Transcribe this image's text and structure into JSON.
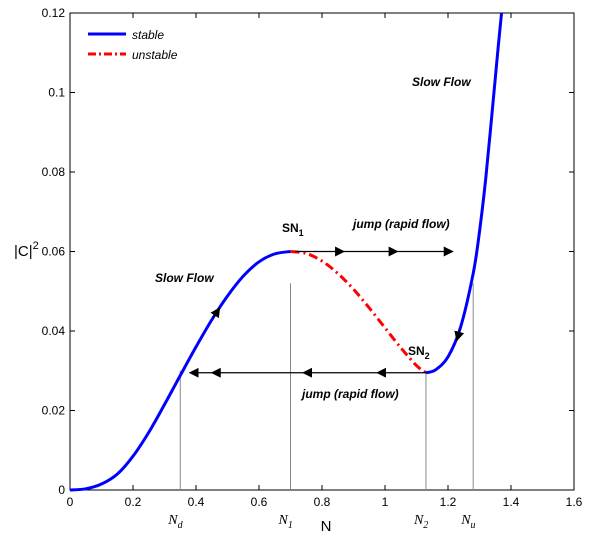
{
  "chart_data": {
    "type": "line",
    "title": "",
    "xlabel": "N",
    "ylabel": "|C|",
    "ylabel_exponent": "2",
    "xlim": [
      0,
      1.6
    ],
    "ylim": [
      0,
      0.12
    ],
    "xticks": [
      0,
      0.2,
      0.4,
      0.6,
      0.8,
      1,
      1.2,
      1.4,
      1.6
    ],
    "yticks": [
      0,
      0.02,
      0.04,
      0.06,
      0.08,
      0.1,
      0.12
    ],
    "xtick_labels": [
      "0",
      "0.2",
      "0.4",
      "0.6",
      "0.8",
      "1",
      "1.2",
      "1.4",
      "1.6"
    ],
    "ytick_labels": [
      "0",
      "0.02",
      "0.04",
      "0.06",
      "0.08",
      "0.1",
      "0.12"
    ],
    "grid": false,
    "legend_position": "top-left",
    "series": [
      {
        "name": "stable",
        "style": "solid",
        "color": "#0000ff",
        "points": [
          [
            0.0,
            0.0
          ],
          [
            0.05,
            0.0003
          ],
          [
            0.1,
            0.0015
          ],
          [
            0.15,
            0.004
          ],
          [
            0.2,
            0.0085
          ],
          [
            0.25,
            0.0145
          ],
          [
            0.3,
            0.0215
          ],
          [
            0.35,
            0.0288
          ],
          [
            0.4,
            0.036
          ],
          [
            0.45,
            0.0428
          ],
          [
            0.5,
            0.0488
          ],
          [
            0.55,
            0.0538
          ],
          [
            0.6,
            0.0574
          ],
          [
            0.65,
            0.0594
          ],
          [
            0.7,
            0.06
          ]
        ]
      },
      {
        "name": "unstable",
        "style": "dash-dot",
        "color": "#ff0000",
        "points": [
          [
            0.7,
            0.06
          ],
          [
            0.75,
            0.0595
          ],
          [
            0.8,
            0.0576
          ],
          [
            0.85,
            0.0545
          ],
          [
            0.9,
            0.0505
          ],
          [
            0.95,
            0.0458
          ],
          [
            1.0,
            0.0408
          ],
          [
            1.05,
            0.0358
          ],
          [
            1.1,
            0.0313
          ],
          [
            1.13,
            0.0295
          ]
        ]
      },
      {
        "name": "stable",
        "style": "solid",
        "color": "#0000ff",
        "show_in_legend": false,
        "points": [
          [
            1.13,
            0.0295
          ],
          [
            1.16,
            0.0302
          ],
          [
            1.2,
            0.0335
          ],
          [
            1.24,
            0.041
          ],
          [
            1.28,
            0.0545
          ],
          [
            1.3,
            0.065
          ],
          [
            1.32,
            0.0785
          ],
          [
            1.34,
            0.095
          ],
          [
            1.36,
            0.112
          ],
          [
            1.37,
            0.12
          ]
        ]
      }
    ],
    "annotations": {
      "sn1": "SN",
      "sn1_sub": "1",
      "sn2": "SN",
      "sn2_sub": "2",
      "slow_flow_left": "Slow Flow",
      "slow_flow_right": "Slow Flow",
      "jump_top": "jump (rapid flow)",
      "jump_bottom": "jump (rapid flow)",
      "markers": [
        {
          "base": "N",
          "sub": "d",
          "x": 0.35
        },
        {
          "base": "N",
          "sub": "1",
          "x": 0.7
        },
        {
          "base": "N",
          "sub": "2",
          "x": 1.13
        },
        {
          "base": "N",
          "sub": "u",
          "x": 1.28
        }
      ]
    }
  }
}
